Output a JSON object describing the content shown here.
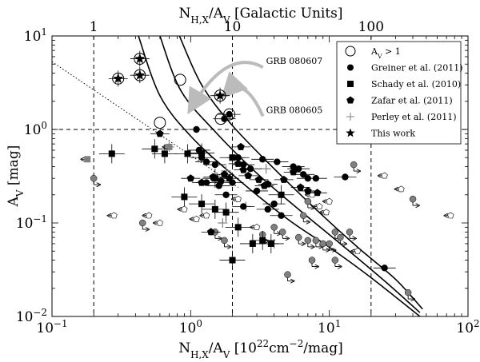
{
  "chart_data": {
    "type": "scatter",
    "x_scale": "log",
    "y_scale": "log",
    "xlim": [
      0.1,
      100
    ],
    "ylim": [
      0.01,
      10
    ],
    "xlabel_parts": [
      "N",
      "H,X",
      "/A",
      "V",
      " [10",
      "22",
      "cm",
      "−2",
      "/mag]"
    ],
    "ylabel_parts": [
      "A",
      "V",
      " [mag]"
    ],
    "top_label_parts": [
      "N",
      "H,X",
      "/A",
      "V",
      " [Galactic Units]"
    ],
    "x_ticks": [
      {
        "value": 0.1,
        "mant": "10",
        "exp": "−1"
      },
      {
        "value": 1,
        "mant": "10",
        "exp": "0"
      },
      {
        "value": 10,
        "mant": "10",
        "exp": "1"
      },
      {
        "value": 100,
        "mant": "10",
        "exp": "2"
      }
    ],
    "y_ticks": [
      {
        "value": 0.01,
        "mant": "10",
        "exp": "−2"
      },
      {
        "value": 0.1,
        "mant": "10",
        "exp": "−1"
      },
      {
        "value": 1,
        "mant": "10",
        "exp": "0"
      },
      {
        "value": 10,
        "mant": "10",
        "exp": "1"
      }
    ],
    "top_ticks": [
      {
        "label": "1",
        "value": 0.2
      },
      {
        "label": "10",
        "value": 2
      },
      {
        "label": "100",
        "value": 20
      }
    ],
    "reference_lines": {
      "vertical": [
        0.2,
        2,
        20
      ],
      "horizontal": [
        1.0
      ]
    },
    "legend": {
      "position": "top-right",
      "entries": [
        {
          "label_parts": [
            "A",
            "V",
            " > 1"
          ],
          "marker": "open-circle"
        },
        {
          "label_parts": [
            "Greiner et al. (2011)"
          ],
          "marker": "circle"
        },
        {
          "label_parts": [
            "Schady et al. (2010)"
          ],
          "marker": "square"
        },
        {
          "label_parts": [
            "Zafar et al. (2011)"
          ],
          "marker": "pentagon"
        },
        {
          "label_parts": [
            "Perley et al. (2011)"
          ],
          "marker": "plus"
        },
        {
          "label_parts": [
            "This work"
          ],
          "marker": "star"
        }
      ]
    },
    "annotations": [
      {
        "text": "GRB 080607",
        "x": 3.5,
        "y": 5.0,
        "arrow_to": [
          0.9,
          1.6
        ]
      },
      {
        "text": "GRB 080605",
        "x": 3.5,
        "y": 1.5,
        "arrow_to": [
          1.6,
          2.3
        ]
      }
    ],
    "curves": [
      {
        "name": "",
        "points": [
          [
            0.42,
            10
          ],
          [
            0.6,
            2.3
          ],
          [
            1.0,
            0.85
          ],
          [
            2.0,
            0.33
          ],
          [
            5.0,
            0.11
          ],
          [
            10,
            0.055
          ],
          [
            20,
            0.026
          ],
          [
            45,
            0.01
          ]
        ]
      },
      {
        "name": "",
        "points": [
          [
            0.6,
            10
          ],
          [
            0.85,
            2.6
          ],
          [
            1.5,
            0.95
          ],
          [
            3.0,
            0.34
          ],
          [
            6.0,
            0.14
          ],
          [
            12,
            0.06
          ],
          [
            25,
            0.024
          ],
          [
            45,
            0.011
          ]
        ]
      },
      {
        "name": "",
        "points": [
          [
            0.83,
            10
          ],
          [
            1.2,
            3.0
          ],
          [
            2.0,
            1.1
          ],
          [
            4.0,
            0.38
          ],
          [
            8.0,
            0.14
          ],
          [
            16,
            0.055
          ],
          [
            30,
            0.025
          ],
          [
            47,
            0.012
          ]
        ]
      }
    ],
    "dotted_line": {
      "points": [
        [
          0.1,
          5.3
        ],
        [
          2.2,
          0.24
        ]
      ]
    },
    "series": [
      {
        "name": "Greiner et al. (2011)",
        "marker": "circle",
        "color": "#000000",
        "points": [
          [
            1.1,
            1.0
          ],
          [
            1.75,
            1.3
          ],
          [
            1.9,
            1.45
          ],
          [
            1.15,
            0.6
          ],
          [
            1.2,
            0.5
          ],
          [
            1.3,
            0.45
          ],
          [
            1.5,
            0.42
          ],
          [
            2.2,
            0.5
          ],
          [
            2.4,
            0.42
          ],
          [
            2.7,
            0.38
          ],
          [
            3.3,
            0.48
          ],
          [
            4.2,
            0.45
          ],
          [
            5.5,
            0.4
          ],
          [
            6.0,
            0.38
          ],
          [
            6.5,
            0.33
          ],
          [
            7.0,
            0.3
          ],
          [
            8.0,
            0.3
          ],
          [
            13.0,
            0.31
          ],
          [
            25,
            0.033
          ],
          [
            1.3,
            0.27
          ],
          [
            1.6,
            0.25
          ],
          [
            2.0,
            0.27
          ],
          [
            3.0,
            0.22
          ],
          [
            4.0,
            0.16
          ],
          [
            2.4,
            0.15
          ],
          [
            4.5,
            0.12
          ],
          [
            1.8,
            0.2
          ],
          [
            3.6,
            0.14
          ]
        ]
      },
      {
        "name": "Greiner et al. (2011) upper limits",
        "marker": "circle-limit",
        "color": "#808080",
        "points": [
          [
            0.2,
            0.3
          ],
          [
            0.45,
            0.1
          ],
          [
            1.5,
            0.08
          ],
          [
            1.75,
            0.065
          ],
          [
            3.3,
            0.075
          ],
          [
            4.0,
            0.09
          ],
          [
            4.6,
            0.08
          ],
          [
            6.0,
            0.07
          ],
          [
            7.0,
            0.065
          ],
          [
            8.0,
            0.065
          ],
          [
            9.0,
            0.06
          ],
          [
            10.0,
            0.06
          ],
          [
            11.0,
            0.08
          ],
          [
            12.0,
            0.07
          ],
          [
            14.0,
            0.08
          ],
          [
            15,
            0.42
          ],
          [
            5.0,
            0.028
          ],
          [
            7.5,
            0.04
          ],
          [
            11,
            0.04
          ],
          [
            37,
            0.018
          ],
          [
            40,
            0.18
          ],
          [
            7.0,
            0.17
          ],
          [
            6.5,
            0.12
          ]
        ]
      },
      {
        "name": "Schady et al. (2010)",
        "marker": "square",
        "color": "#000000",
        "points": [
          [
            0.27,
            0.55
          ],
          [
            0.55,
            0.62
          ],
          [
            0.65,
            0.55
          ],
          [
            0.95,
            0.55
          ],
          [
            1.2,
            0.56
          ],
          [
            2.0,
            0.5
          ],
          [
            1.5,
            0.3
          ],
          [
            0.9,
            0.19
          ],
          [
            1.2,
            0.16
          ],
          [
            1.5,
            0.14
          ],
          [
            1.8,
            0.13
          ],
          [
            2.0,
            0.04
          ],
          [
            2.8,
            0.06
          ],
          [
            3.3,
            0.065
          ],
          [
            3.8,
            0.06
          ],
          [
            2.2,
            0.09
          ],
          [
            4.5,
            0.2
          ]
        ]
      },
      {
        "name": "Schady et al. (2010) limits",
        "marker": "square-limit",
        "color": "#808080",
        "points": [
          [
            0.18,
            0.48
          ],
          [
            0.7,
            0.65
          ]
        ]
      },
      {
        "name": "Zafar et al. (2011)",
        "marker": "pentagon",
        "color": "#000000",
        "points": [
          [
            0.6,
            0.9
          ],
          [
            2.3,
            0.65
          ],
          [
            1.0,
            0.3
          ],
          [
            1.2,
            0.27
          ],
          [
            1.45,
            0.31
          ],
          [
            1.65,
            0.28
          ],
          [
            2.2,
            0.43
          ],
          [
            2.6,
            0.32
          ],
          [
            3.1,
            0.29
          ],
          [
            3.4,
            0.25
          ],
          [
            4.7,
            0.29
          ],
          [
            6.2,
            0.24
          ],
          [
            7.0,
            0.22
          ],
          [
            8.2,
            0.21
          ],
          [
            5.5,
            0.35
          ],
          [
            1.9,
            0.3
          ],
          [
            1.75,
            0.33
          ],
          [
            2.4,
            0.37
          ],
          [
            1.4,
            0.08
          ],
          [
            3.6,
            0.26
          ]
        ]
      },
      {
        "name": "Perley et al. (2011)",
        "marker": "plus",
        "color": "#808080",
        "points": [
          [
            0.7,
            0.65
          ],
          [
            1.6,
            0.27
          ],
          [
            2.5,
            0.15
          ],
          [
            1.8,
            0.36
          ],
          [
            3.5,
            0.38
          ],
          [
            1.7,
            0.1
          ],
          [
            4.0,
            0.06
          ]
        ]
      },
      {
        "name": "Perley et al. (2011) limits",
        "marker": "open-limit",
        "color": "#ffffff",
        "points": [
          [
            0.28,
            0.12
          ],
          [
            0.5,
            0.12
          ],
          [
            1.1,
            0.11
          ],
          [
            1.3,
            0.12
          ],
          [
            2.2,
            0.18
          ],
          [
            7.5,
            0.2
          ],
          [
            8.5,
            0.15
          ],
          [
            9.5,
            0.13
          ],
          [
            10,
            0.17
          ],
          [
            25,
            0.32
          ],
          [
            33,
            0.23
          ],
          [
            75,
            0.12
          ],
          [
            0.6,
            0.1
          ],
          [
            0.9,
            0.14
          ],
          [
            3.0,
            0.09
          ],
          [
            16,
            0.05
          ]
        ]
      },
      {
        "name": "This work",
        "marker": "star",
        "color": "#000000",
        "points": [
          [
            0.3,
            3.5
          ],
          [
            0.43,
            5.7
          ],
          [
            0.43,
            3.8
          ],
          [
            1.63,
            2.3
          ]
        ]
      },
      {
        "name": "A_V > 1",
        "marker": "open-circle",
        "color": "#000000",
        "points": [
          [
            0.3,
            3.5
          ],
          [
            0.43,
            5.7
          ],
          [
            0.43,
            3.8
          ],
          [
            0.84,
            3.4
          ],
          [
            1.63,
            2.3
          ],
          [
            1.9,
            1.45
          ],
          [
            0.6,
            1.18
          ],
          [
            1.65,
            1.3
          ]
        ]
      }
    ]
  }
}
